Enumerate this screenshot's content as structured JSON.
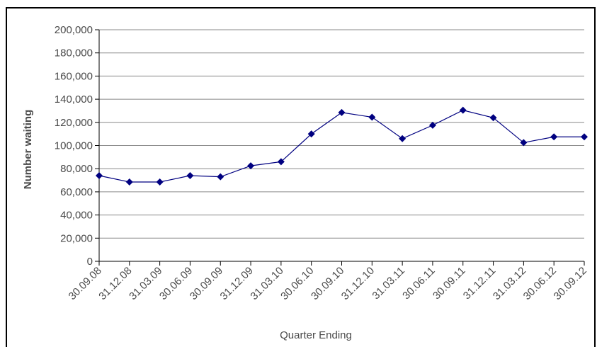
{
  "chart_data": {
    "type": "line",
    "title": "",
    "xlabel": "Quarter Ending",
    "ylabel": "Number waiting",
    "ylim": [
      0,
      200000
    ],
    "y_ticks": [
      "0",
      "20,000",
      "40,000",
      "60,000",
      "80,000",
      "100,000",
      "120,000",
      "140,000",
      "160,000",
      "180,000",
      "200,000"
    ],
    "categories": [
      "30.09.08",
      "31.12.08",
      "31.03.09",
      "30.06.09",
      "30.09.09",
      "31.12.09",
      "31.03.10",
      "30.06.10",
      "30.09.10",
      "31.12.10",
      "31.03.11",
      "30.06.11",
      "30.09.11",
      "31.12.11",
      "31.03.12",
      "30.06.12",
      "30.09.12"
    ],
    "series": [
      {
        "values": [
          74000,
          68500,
          68500,
          74000,
          73000,
          82500,
          86000,
          110000,
          128500,
          124500,
          106000,
          117500,
          130500,
          124000,
          102500,
          107500,
          107500
        ],
        "color": "#000080",
        "marker": "diamond"
      }
    ],
    "grid": true,
    "legend": "none"
  }
}
